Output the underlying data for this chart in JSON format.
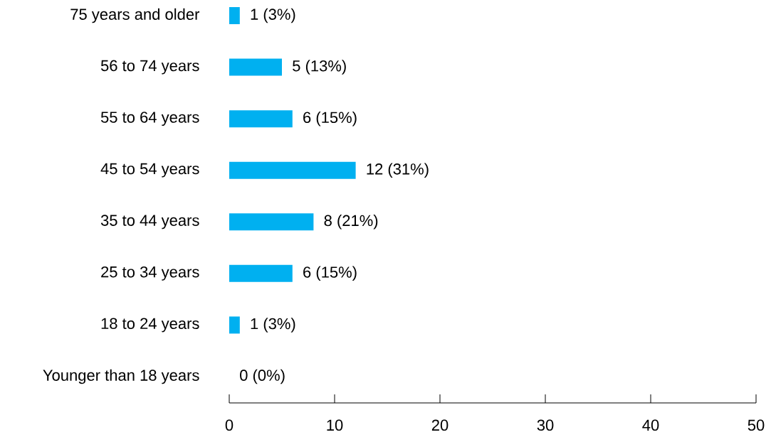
{
  "chart_data": {
    "type": "bar",
    "orientation": "horizontal",
    "categories": [
      "75 years and older",
      "56 to 74 years",
      "55 to 64 years",
      "45 to 54 years",
      "35 to 44 years",
      "25 to 34 years",
      "18 to 24 years",
      "Younger than 18 years"
    ],
    "values": [
      1,
      5,
      6,
      12,
      8,
      6,
      1,
      0
    ],
    "value_labels": [
      "1 (3%)",
      "5 (13%)",
      "6 (15%)",
      "12 (31%)",
      "8 (21%)",
      "6 (15%)",
      "1 (3%)",
      "0 (0%)"
    ],
    "color": "#00b0f0",
    "xlim": [
      0,
      50
    ],
    "xticks": [
      0,
      10,
      20,
      30,
      40,
      50
    ],
    "grid": false
  }
}
